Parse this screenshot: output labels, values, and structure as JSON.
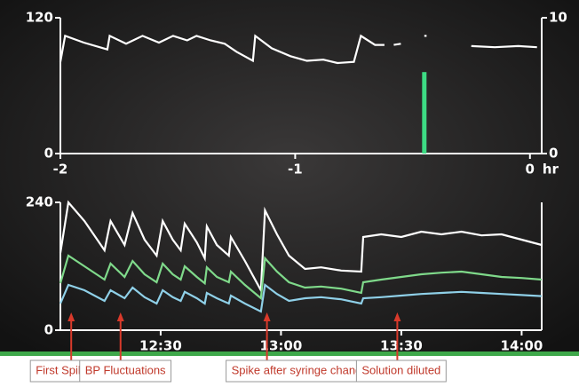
{
  "chart_data": [
    {
      "type": "line",
      "xlim": [
        -2,
        0.05
      ],
      "xticks": [
        -2,
        -1,
        0
      ],
      "xlabel": "hr",
      "ylim": [
        0,
        120
      ],
      "yticks": [
        0,
        120
      ],
      "y2lim": [
        0,
        10
      ],
      "y2ticks": [
        0,
        10
      ],
      "series": [
        {
          "color": "#ffffff",
          "x": [
            -2.0,
            -1.98,
            -1.9,
            -1.8,
            -1.79,
            -1.72,
            -1.65,
            -1.58,
            -1.52,
            -1.46,
            -1.42,
            -1.36,
            -1.3,
            -1.25,
            -1.18,
            -1.17,
            -1.1,
            -1.02,
            -0.95,
            -0.88,
            -0.82,
            -0.75,
            -0.72,
            -0.66,
            -0.62,
            -0.6,
            -0.58,
            -0.55,
            -0.5,
            -0.45,
            -0.44,
            -0.35,
            -0.25,
            -0.15,
            -0.05,
            0.03
          ],
          "values": [
            81,
            104,
            98,
            92,
            104,
            97,
            104,
            98,
            104,
            100,
            104,
            100,
            97,
            90,
            82,
            104,
            93,
            86,
            82,
            83,
            80,
            81,
            104,
            96,
            96,
            null,
            96,
            97,
            null,
            104,
            104,
            null,
            95,
            94,
            95,
            94
          ]
        },
        {
          "type": "bar",
          "axis": "y2",
          "color": "#3ddc84",
          "x": [
            -0.45
          ],
          "values": [
            6
          ]
        }
      ]
    },
    {
      "type": "line",
      "xlim": [
        725,
        845
      ],
      "xticks": [
        {
          "value": 750,
          "label": "12:30"
        },
        {
          "value": 780,
          "label": "13:00"
        },
        {
          "value": 810,
          "label": "13:30"
        },
        {
          "value": 840,
          "label": "14:00"
        }
      ],
      "ylim": [
        0,
        240
      ],
      "yticks": [
        0,
        240
      ],
      "x": [
        725,
        727,
        731,
        736,
        737.5,
        741,
        743,
        746,
        749,
        750.5,
        753,
        755,
        756,
        759,
        761,
        761.5,
        764,
        767,
        767.5,
        771,
        775,
        776,
        779,
        782,
        786,
        790,
        795,
        800,
        800.5,
        805,
        810,
        815,
        820,
        825,
        830,
        835,
        840,
        845
      ],
      "series": [
        {
          "color": "#ffffff",
          "values": [
            145,
            240,
            205,
            150,
            205,
            160,
            220,
            170,
            140,
            205,
            170,
            150,
            200,
            165,
            135,
            195,
            160,
            140,
            175,
            130,
            75,
            225,
            180,
            140,
            115,
            118,
            112,
            110,
            175,
            180,
            175,
            185,
            180,
            185,
            178,
            180,
            170,
            160
          ]
        },
        {
          "color": "#7fd98a",
          "values": [
            88,
            140,
            120,
            95,
            125,
            100,
            130,
            105,
            90,
            125,
            105,
            95,
            120,
            100,
            88,
            118,
            100,
            90,
            110,
            85,
            60,
            135,
            110,
            90,
            80,
            82,
            78,
            70,
            90,
            95,
            100,
            105,
            108,
            110,
            105,
            100,
            98,
            95
          ]
        },
        {
          "color": "#8fd0e8",
          "values": [
            50,
            85,
            75,
            55,
            75,
            60,
            80,
            62,
            50,
            75,
            62,
            55,
            72,
            60,
            50,
            70,
            60,
            50,
            65,
            50,
            35,
            85,
            68,
            55,
            60,
            62,
            58,
            50,
            60,
            62,
            65,
            68,
            70,
            72,
            70,
            68,
            66,
            64
          ]
        }
      ],
      "annotations": [
        {
          "text": "First Spike",
          "x": 727.7
        },
        {
          "text": "BP Fluctuations",
          "x": 740
        },
        {
          "text": "Spike after syringe change",
          "x": 776.5
        },
        {
          "text": "Solution diluted",
          "x": 809
        }
      ]
    }
  ]
}
